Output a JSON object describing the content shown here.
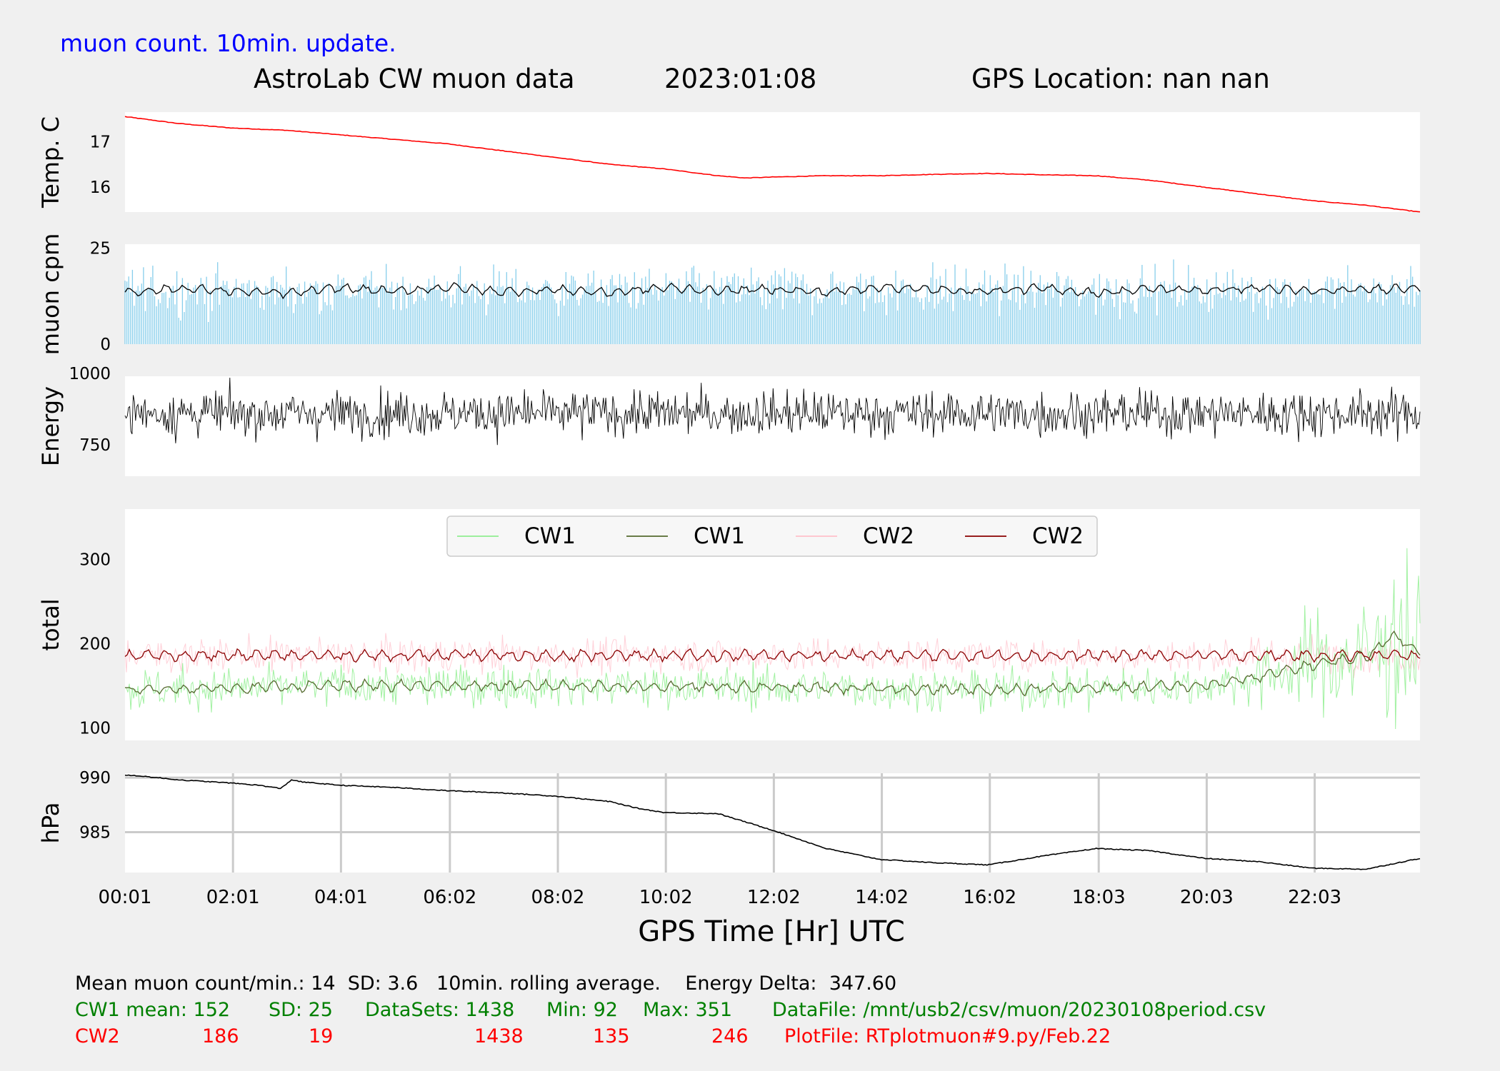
{
  "header": {
    "subtitle": "muon count.  10min. update.",
    "title_left": "AstroLab CW muon data",
    "title_date": "2023:01:08",
    "title_right": "GPS Location: nan   nan"
  },
  "colors": {
    "temp_line": "#ff0000",
    "muon_bars": "#87ceeb",
    "rolling_avg": "#000000",
    "cw1_raw": "#90ee90",
    "cw1_avg": "#556b2f",
    "cw2_raw": "#ffc0cb",
    "cw2_avg": "#8b0000",
    "subtitle": "#0000ff",
    "stats_green": "#008000",
    "stats_red": "#ff0000"
  },
  "chart_data": [
    {
      "id": "temp",
      "type": "line",
      "ylabel": "Temp. C",
      "yticks": [
        16,
        17
      ],
      "ylim": [
        15.45,
        17.65
      ],
      "xlim": [
        0.0167,
        24
      ],
      "series": [
        {
          "values_at_hours": [
            0.02,
            17.55,
            1.0,
            17.4,
            2.0,
            17.3,
            3.0,
            17.25,
            4.0,
            17.15,
            5.0,
            17.05,
            6.0,
            16.95,
            7.0,
            16.8,
            8.0,
            16.65,
            9.0,
            16.5,
            10.0,
            16.4,
            11.0,
            16.25,
            11.5,
            16.2,
            12.0,
            16.22,
            13.0,
            16.25,
            14.0,
            16.25,
            15.0,
            16.28,
            16.0,
            16.3,
            17.0,
            16.27,
            18.0,
            16.25,
            19.0,
            16.15,
            20.0,
            16.0,
            21.0,
            15.85,
            22.0,
            15.7,
            23.0,
            15.6,
            24.0,
            15.45
          ]
        }
      ]
    },
    {
      "id": "muon",
      "type": "bar",
      "ylabel": "muon cpm",
      "yticks": [
        0,
        25
      ],
      "ylim": [
        0,
        26
      ],
      "xlim": [
        0.0167,
        24
      ],
      "mean": 14,
      "sd": 3.6,
      "rolling_avg": [
        13.5,
        14.5,
        13.8,
        13.2,
        14.6,
        13.7,
        14.8,
        13.6,
        14.2,
        13.4,
        14.7,
        13.9,
        14.3,
        13.5,
        14.9,
        14.1,
        13.8,
        14.5,
        13.3,
        14.4,
        14.0,
        14.6,
        13.7,
        14.2,
        14.8
      ]
    },
    {
      "id": "energy",
      "type": "line",
      "ylabel": "Energy",
      "yticks": [
        750,
        1000
      ],
      "ylim": [
        640,
        990
      ],
      "xlim": [
        0.0167,
        24
      ],
      "center": 860,
      "delta": 347.6
    },
    {
      "id": "total",
      "type": "line",
      "ylabel": "total",
      "yticks": [
        100,
        200,
        300
      ],
      "ylim": [
        85,
        360
      ],
      "xlim": [
        0.0167,
        24
      ],
      "series": [
        {
          "name": "CW1",
          "values_at_hours": [
            0,
            145,
            4,
            150,
            8,
            150,
            12,
            148,
            16,
            145,
            20,
            150,
            21,
            160,
            22,
            175,
            23,
            185,
            23.5,
            210,
            24,
            190
          ]
        },
        {
          "name": "CW1"
        },
        {
          "name": "CW2",
          "values_at_hours": [
            0,
            186,
            24,
            186
          ]
        },
        {
          "name": "CW2"
        }
      ],
      "legend_location": "top-center"
    },
    {
      "id": "hpa",
      "type": "line",
      "ylabel": "hPa",
      "yticks": [
        985,
        990
      ],
      "ylim": [
        981.3,
        990.4
      ],
      "xlim": [
        0.0167,
        24
      ],
      "grid": true,
      "xlabel": "GPS Time  [Hr] UTC",
      "xtick_labels": [
        "00:01",
        "02:01",
        "04:01",
        "06:02",
        "08:02",
        "10:02",
        "12:02",
        "14:02",
        "16:02",
        "18:03",
        "20:03",
        "22:03"
      ],
      "xtick_hours": [
        0.0167,
        2.0167,
        4.0167,
        6.0333,
        8.0333,
        10.0333,
        12.0333,
        14.0333,
        16.0333,
        18.05,
        20.05,
        22.05
      ],
      "series": [
        {
          "values_at_hours": [
            0,
            990.2,
            0.2,
            990.2,
            1,
            989.8,
            2,
            989.5,
            2.5,
            989.3,
            2.9,
            989.0,
            3.1,
            989.8,
            3.3,
            989.6,
            4,
            989.3,
            5,
            989.1,
            6,
            988.8,
            7,
            988.6,
            8,
            988.3,
            9,
            987.8,
            9.5,
            987.2,
            10,
            986.8,
            11,
            986.7,
            12,
            985.2,
            13,
            983.5,
            14,
            982.5,
            15,
            982.2,
            16,
            982.0,
            17,
            982.8,
            18,
            983.5,
            19,
            983.3,
            20,
            982.6,
            21,
            982.3,
            22,
            981.7,
            23,
            981.6,
            24,
            982.6
          ]
        }
      ]
    }
  ],
  "stats": {
    "line1": "Mean muon count/min.: 14  SD: 3.6   10min. rolling average.    Energy Delta:  347.60",
    "cw1": {
      "label": "CW1 mean: 152",
      "sd": "SD: 25",
      "datasets": "DataSets: 1438",
      "min": "Min: 92",
      "max": "Max: 351",
      "file": "DataFile: /mnt/usb2/csv/muon/20230108period.csv"
    },
    "cw2": {
      "label": "CW2",
      "mean": "186",
      "sd": "19",
      "datasets": "1438",
      "min": "135",
      "max": "246",
      "file": "PlotFile: RTplotmuon#9.py/Feb.22"
    }
  }
}
